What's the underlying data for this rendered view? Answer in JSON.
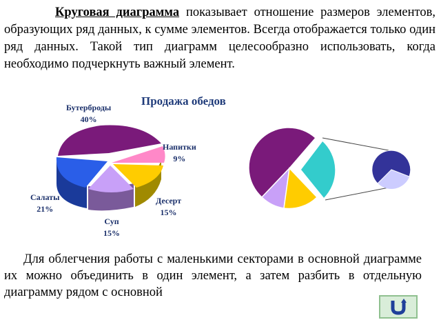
{
  "paragraph1": {
    "term": "Круговая диаграмма",
    "text": "показывает отношение размеров элементов, образующих ряд данных, к сумме элементов. Всегда отображается только один ряд данных. Такой тип диаграмм целесообразно использовать, когда необходимо подчеркнуть важный элемент."
  },
  "paragraph2": {
    "text": "Для облегчения работы с маленькими секторами в основной диаграмме их можно объединить в один элемент, а затем разбить в отдельную диаграмму рядом с основной"
  },
  "chart_data": [
    {
      "type": "pie",
      "title": "Продажа обедов",
      "categories": [
        "Бутерброды",
        "Напитки",
        "Десерт",
        "Суп",
        "Салаты"
      ],
      "values": [
        40,
        9,
        15,
        15,
        21
      ],
      "value_labels": [
        "40%",
        "9%",
        "15%",
        "15%",
        "21%"
      ],
      "colors": [
        "#7a1a7a",
        "#ff88c8",
        "#ffcc00",
        "#c8a0f8",
        "#2a5ee8"
      ],
      "style": "3d-exploded"
    },
    {
      "type": "pie",
      "style": "pie-of-pie",
      "main_slices_colors": [
        "#7a1a7a",
        "#33cccc",
        "#ffcc00",
        "#c8a0f8"
      ],
      "secondary_slices_colors": [
        "#333399",
        "#ccccff"
      ]
    }
  ],
  "nav": {
    "icon": "return-arrow-icon"
  }
}
